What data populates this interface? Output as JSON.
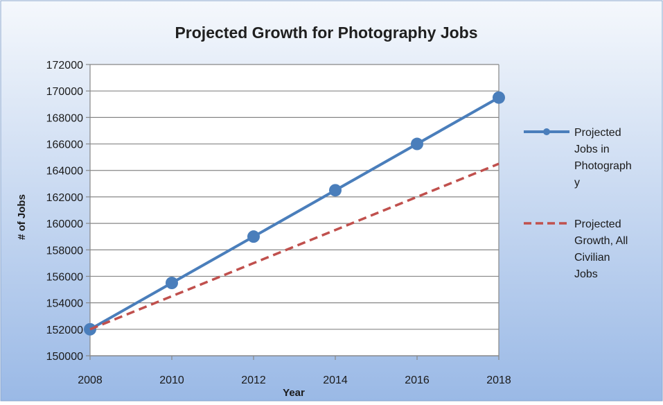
{
  "chart_data": {
    "type": "line",
    "title": "Projected Growth for Photography Jobs",
    "xlabel": "Year",
    "ylabel": "# of Jobs",
    "x": [
      2008,
      2010,
      2012,
      2014,
      2016,
      2018
    ],
    "xlim": [
      2008,
      2018
    ],
    "ylim": [
      150000,
      172000
    ],
    "y_ticks": [
      150000,
      152000,
      154000,
      156000,
      158000,
      160000,
      162000,
      164000,
      166000,
      168000,
      170000,
      172000
    ],
    "grid": true,
    "legend_position": "right",
    "series": [
      {
        "name": "Projected Jobs in Photography",
        "legend_lines": [
          "Projected",
          "Jobs in",
          "Photograph",
          "y"
        ],
        "values": [
          152000,
          155500,
          159000,
          162500,
          166000,
          169500
        ],
        "color": "#4a7ebb",
        "style": "solid",
        "markers": true
      },
      {
        "name": "Projected Growth, All Civilian Jobs",
        "legend_lines": [
          "Projected",
          "Growth, All",
          "Civilian",
          "Jobs"
        ],
        "values": [
          152000,
          164500
        ],
        "x": [
          2008,
          2018
        ],
        "color": "#c0504d",
        "style": "dashed",
        "markers": false
      }
    ],
    "colors": {
      "background_top": "#f5f8fc",
      "background_bottom": "#9ab9e6",
      "plot_area": "#ffffff",
      "grid": "#868686",
      "text": "#1a1a1a",
      "title": "#1f1f1f"
    }
  }
}
